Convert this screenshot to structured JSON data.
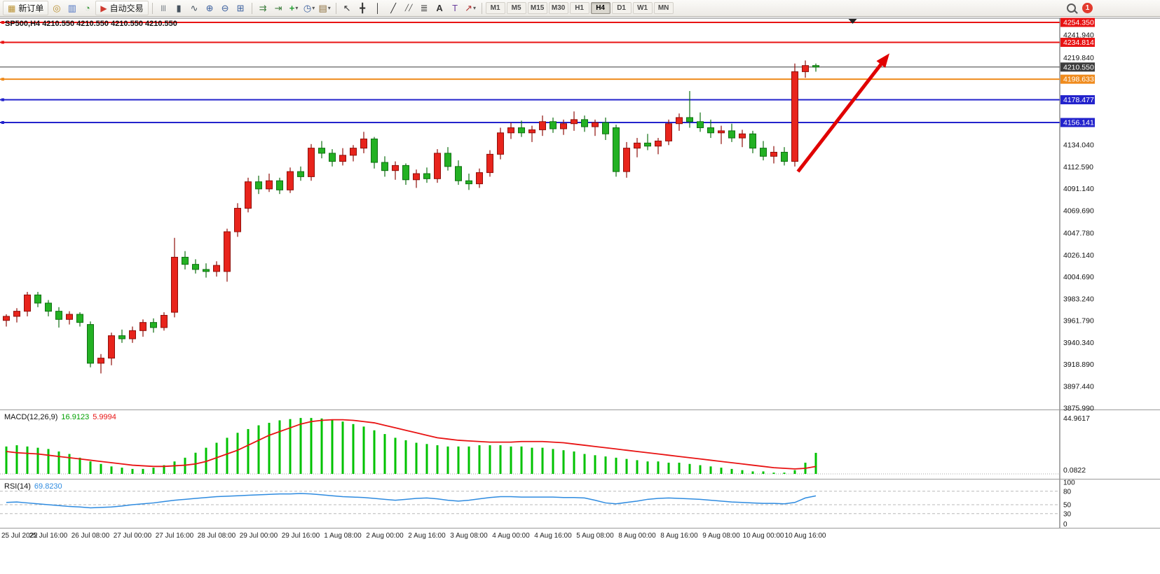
{
  "toolbar": {
    "badge_count": "1",
    "timeframes": [
      "M1",
      "M5",
      "M15",
      "M30",
      "H1",
      "H4",
      "D1",
      "W1",
      "MN"
    ],
    "active_timeframe": "H4",
    "items": [
      {
        "type": "button",
        "name": "new-order-button",
        "label": "新订单",
        "glyph": "▦",
        "glyph_color": "#b99030"
      },
      {
        "type": "icon",
        "name": "alerts-icon",
        "glyph": "◎",
        "glyph_color": "#b99030"
      },
      {
        "type": "icon",
        "name": "market-watch-icon",
        "glyph": "▥",
        "glyph_color": "#4f74c2"
      },
      {
        "type": "icon",
        "name": "strategy-tester-icon",
        "glyph": "◔",
        "glyph_color": "#3f9b41"
      },
      {
        "type": "button",
        "name": "autotrade-button",
        "label": "自动交易",
        "glyph": "▶",
        "glyph_color": "#cf3a30"
      },
      {
        "type": "sep"
      },
      {
        "type": "icon",
        "name": "bar-chart-type-icon",
        "glyph": "|||",
        "glyph_color": "#46525e",
        "glyph_size": 9
      },
      {
        "type": "icon",
        "name": "candlestick-type-icon",
        "glyph": "▮",
        "glyph_color": "#46525e"
      },
      {
        "type": "icon",
        "name": "line-chart-type-icon",
        "glyph": "∿",
        "glyph_color": "#46525e"
      },
      {
        "type": "icon",
        "name": "zoom-in-icon",
        "glyph": "⊕",
        "glyph_color": "#3a5f9e"
      },
      {
        "type": "icon",
        "name": "zoom-out-icon",
        "glyph": "⊖",
        "glyph_color": "#3a5f9e"
      },
      {
        "type": "icon",
        "name": "tile-windows-icon",
        "glyph": "⊞",
        "glyph_color": "#3a5f9e"
      },
      {
        "type": "sep"
      },
      {
        "type": "icon",
        "name": "auto-scroll-icon",
        "glyph": "⇉",
        "glyph_color": "#3f7f3f"
      },
      {
        "type": "icon",
        "name": "chart-shift-icon",
        "glyph": "⇥",
        "glyph_color": "#3f7f3f"
      },
      {
        "type": "icon",
        "name": "indicators-icon",
        "glyph": "+",
        "glyph_color": "#1f9d2f",
        "bold": true,
        "caret": true
      },
      {
        "type": "icon",
        "name": "periods-icon",
        "glyph": "◷",
        "glyph_color": "#3a5f9e",
        "caret": true
      },
      {
        "type": "icon",
        "name": "templates-icon",
        "glyph": "▤",
        "glyph_color": "#8a6d3b",
        "caret": true
      },
      {
        "type": "sep"
      },
      {
        "type": "icon",
        "name": "cursor-icon",
        "glyph": "↖",
        "glyph_color": "#333333"
      },
      {
        "type": "icon",
        "name": "crosshair-icon",
        "glyph": "╋",
        "glyph_color": "#333333"
      },
      {
        "type": "icon",
        "name": "vertical-line-icon",
        "glyph": "│",
        "glyph_color": "#333333"
      },
      {
        "type": "icon",
        "name": "trendline-icon",
        "glyph": "╱",
        "glyph_color": "#333333"
      },
      {
        "type": "icon",
        "name": "channel-icon",
        "glyph": "╱╱",
        "glyph_color": "#333333",
        "glyph_size": 9
      },
      {
        "type": "icon",
        "name": "fibonacci-icon",
        "glyph": "≣",
        "glyph_color": "#333333"
      },
      {
        "type": "icon",
        "name": "text-icon",
        "glyph": "A",
        "glyph_color": "#333333",
        "bold": true
      },
      {
        "type": "icon",
        "name": "text-label-icon",
        "glyph": "T",
        "glyph_color": "#6a3f9e"
      },
      {
        "type": "icon",
        "name": "arrows-icon",
        "glyph": "↗",
        "glyph_color": "#b03030",
        "caret": true
      },
      {
        "type": "sep"
      },
      {
        "type": "tf-group"
      },
      {
        "type": "spacer"
      },
      {
        "type": "search"
      },
      {
        "type": "badge"
      }
    ]
  },
  "chart_data": {
    "type": "candlestick",
    "symbol": "SP500",
    "timeframe": "H4",
    "ohlc_label": "SP500,H4 4210.550 4210.550 4210.550 4210.550",
    "colors": {
      "up_fill": "#e8241c",
      "up_stroke": "#8f0f0a",
      "down_fill": "#23b123",
      "down_stroke": "#0f6f12",
      "macd_hist": "#00c200",
      "macd_signal": "#e81313",
      "rsi_line": "#2e8be0"
    },
    "price_axis": {
      "max": 4254.35,
      "min": 3875.99,
      "ticks": [
        {
          "p": 4241.94,
          "label": "4241.940"
        },
        {
          "p": 4219.84,
          "label": "4219.840"
        },
        {
          "p": 4134.04,
          "label": "4134.040"
        },
        {
          "p": 4112.59,
          "label": "4112.590"
        },
        {
          "p": 4091.14,
          "label": "4091.140"
        },
        {
          "p": 4069.69,
          "label": "4069.690"
        },
        {
          "p": 4047.78,
          "label": "4047.780"
        },
        {
          "p": 4026.14,
          "label": "4026.140"
        },
        {
          "p": 4004.69,
          "label": "4004.690"
        },
        {
          "p": 3983.24,
          "label": "3983.240"
        },
        {
          "p": 3961.79,
          "label": "3961.790"
        },
        {
          "p": 3940.34,
          "label": "3940.340"
        },
        {
          "p": 3918.89,
          "label": "3918.890"
        },
        {
          "p": 3897.44,
          "label": "3897.440"
        },
        {
          "p": 3875.99,
          "label": "3875.990"
        }
      ]
    },
    "hlines": [
      {
        "price": 4254.35,
        "label": "4254.350",
        "color": "#e81313",
        "width": 2,
        "marker": true
      },
      {
        "price": 4234.814,
        "label": "4234.814",
        "color": "#e81313",
        "width": 2,
        "marker": true
      },
      {
        "price": 4210.55,
        "label": "4210.550",
        "color": "#3c3c3c",
        "width": 1,
        "marker": false,
        "name": "current-price-line"
      },
      {
        "price": 4198.633,
        "label": "4198.633",
        "color": "#ef8b1d",
        "width": 2,
        "marker": true
      },
      {
        "price": 4178.477,
        "label": "4178.477",
        "color": "#2323cc",
        "width": 2,
        "marker": true
      },
      {
        "price": 4156.141,
        "label": "4156.141",
        "color": "#2323cc",
        "width": 2,
        "marker": true
      }
    ],
    "bars_format": [
      "time",
      "open",
      "high",
      "low",
      "close"
    ],
    "bars": [
      [
        "25 Jul 00:00",
        3962,
        3968,
        3956,
        3966
      ],
      [
        "25 Jul 04:00",
        3966,
        3974,
        3960,
        3971
      ],
      [
        "25 Jul 08:00",
        3971,
        3990,
        3966,
        3987
      ],
      [
        "25 Jul 12:00",
        3987,
        3990,
        3975,
        3979
      ],
      [
        "25 Jul 16:00",
        3979,
        3982,
        3966,
        3971
      ],
      [
        "25 Jul 20:00",
        3971,
        3975,
        3955,
        3963
      ],
      [
        "26 Jul 00:00",
        3963,
        3971,
        3958,
        3968
      ],
      [
        "26 Jul 04:00",
        3968,
        3970,
        3956,
        3960
      ],
      [
        "26 Jul 08:00",
        3958,
        3961,
        3916,
        3920
      ],
      [
        "26 Jul 12:00",
        3920,
        3929,
        3910,
        3925
      ],
      [
        "26 Jul 16:00",
        3925,
        3950,
        3918,
        3947
      ],
      [
        "26 Jul 20:00",
        3947,
        3953,
        3940,
        3944
      ],
      [
        "27 Jul 00:00",
        3944,
        3956,
        3940,
        3952
      ],
      [
        "27 Jul 04:00",
        3952,
        3963,
        3946,
        3960
      ],
      [
        "27 Jul 08:00",
        3960,
        3964,
        3950,
        3955
      ],
      [
        "27 Jul 12:00",
        3955,
        3970,
        3952,
        3967
      ],
      [
        "27 Jul 16:00",
        3970,
        4043,
        3965,
        4024
      ],
      [
        "27 Jul 20:00",
        4024,
        4030,
        4012,
        4017
      ],
      [
        "28 Jul 00:00",
        4017,
        4022,
        4008,
        4012
      ],
      [
        "28 Jul 04:00",
        4012,
        4018,
        4004,
        4010
      ],
      [
        "28 Jul 08:00",
        4010,
        4020,
        4005,
        4016
      ],
      [
        "28 Jul 12:00",
        4010,
        4052,
        4000,
        4049
      ],
      [
        "28 Jul 16:00",
        4049,
        4077,
        4044,
        4072
      ],
      [
        "28 Jul 20:00",
        4072,
        4102,
        4068,
        4098
      ],
      [
        "29 Jul 00:00",
        4098,
        4104,
        4086,
        4091
      ],
      [
        "29 Jul 04:00",
        4091,
        4106,
        4088,
        4099
      ],
      [
        "29 Jul 08:00",
        4099,
        4102,
        4086,
        4090
      ],
      [
        "29 Jul 12:00",
        4090,
        4112,
        4087,
        4108
      ],
      [
        "29 Jul 16:00",
        4108,
        4113,
        4099,
        4103
      ],
      [
        "29 Jul 20:00",
        4103,
        4135,
        4099,
        4131
      ],
      [
        "1 Aug 00:00",
        4131,
        4138,
        4121,
        4126
      ],
      [
        "1 Aug 04:00",
        4126,
        4130,
        4113,
        4118
      ],
      [
        "1 Aug 08:00",
        4118,
        4131,
        4114,
        4124
      ],
      [
        "1 Aug 12:00",
        4124,
        4134,
        4118,
        4131
      ],
      [
        "1 Aug 16:00",
        4131,
        4147,
        4126,
        4140
      ],
      [
        "1 Aug 20:00",
        4140,
        4142,
        4111,
        4117
      ],
      [
        "2 Aug 00:00",
        4117,
        4123,
        4103,
        4109
      ],
      [
        "2 Aug 04:00",
        4109,
        4118,
        4100,
        4114
      ],
      [
        "2 Aug 08:00",
        4114,
        4116,
        4095,
        4100
      ],
      [
        "2 Aug 12:00",
        4100,
        4110,
        4092,
        4106
      ],
      [
        "2 Aug 16:00",
        4106,
        4112,
        4097,
        4101
      ],
      [
        "2 Aug 20:00",
        4101,
        4130,
        4097,
        4126
      ],
      [
        "3 Aug 00:00",
        4126,
        4132,
        4109,
        4113
      ],
      [
        "3 Aug 04:00",
        4113,
        4119,
        4095,
        4099
      ],
      [
        "3 Aug 08:00",
        4099,
        4106,
        4090,
        4096
      ],
      [
        "3 Aug 12:00",
        4096,
        4111,
        4092,
        4107
      ],
      [
        "3 Aug 16:00",
        4107,
        4129,
        4103,
        4125
      ],
      [
        "3 Aug 20:00",
        4125,
        4151,
        4120,
        4146
      ],
      [
        "4 Aug 00:00",
        4146,
        4156,
        4140,
        4151
      ],
      [
        "4 Aug 04:00",
        4151,
        4158,
        4142,
        4146
      ],
      [
        "4 Aug 08:00",
        4146,
        4153,
        4137,
        4149
      ],
      [
        "4 Aug 12:00",
        4149,
        4163,
        4143,
        4157
      ],
      [
        "4 Aug 16:00",
        4157,
        4161,
        4146,
        4150
      ],
      [
        "4 Aug 20:00",
        4150,
        4159,
        4144,
        4155
      ],
      [
        "5 Aug 00:00",
        4155,
        4167,
        4148,
        4159
      ],
      [
        "5 Aug 04:00",
        4159,
        4163,
        4147,
        4152
      ],
      [
        "5 Aug 08:00",
        4152,
        4159,
        4143,
        4156
      ],
      [
        "5 Aug 12:00",
        4156,
        4161,
        4139,
        4145
      ],
      [
        "5 Aug 16:00",
        4151,
        4154,
        4103,
        4108
      ],
      [
        "5 Aug 20:00",
        4108,
        4137,
        4102,
        4131
      ],
      [
        "8 Aug 00:00",
        4131,
        4141,
        4122,
        4136
      ],
      [
        "8 Aug 04:00",
        4136,
        4145,
        4129,
        4133
      ],
      [
        "8 Aug 08:00",
        4133,
        4141,
        4125,
        4138
      ],
      [
        "8 Aug 12:00",
        4138,
        4159,
        4134,
        4155
      ],
      [
        "8 Aug 16:00",
        4155,
        4165,
        4148,
        4161
      ],
      [
        "8 Aug 20:00",
        4161,
        4187,
        4151,
        4157
      ],
      [
        "9 Aug 00:00",
        4157,
        4166,
        4147,
        4151
      ],
      [
        "9 Aug 04:00",
        4151,
        4159,
        4141,
        4146
      ],
      [
        "9 Aug 08:00",
        4146,
        4153,
        4135,
        4148
      ],
      [
        "9 Aug 12:00",
        4148,
        4155,
        4137,
        4141
      ],
      [
        "9 Aug 16:00",
        4141,
        4149,
        4132,
        4145
      ],
      [
        "9 Aug 20:00",
        4145,
        4148,
        4126,
        4131
      ],
      [
        "10 Aug 00:00",
        4131,
        4138,
        4119,
        4123
      ],
      [
        "10 Aug 04:00",
        4123,
        4133,
        4116,
        4127
      ],
      [
        "10 Aug 08:00",
        4127,
        4132,
        4114,
        4118
      ],
      [
        "10 Aug 12:00",
        4118,
        4214,
        4113,
        4206
      ],
      [
        "10 Aug 16:00",
        4206,
        4217,
        4200,
        4212
      ],
      [
        "10 Aug 20:00",
        4212,
        4214,
        4206,
        4210.55
      ]
    ],
    "time_labels": [
      {
        "i": 0,
        "label": "25 Jul 2022"
      },
      {
        "i": 4,
        "label": "25 Jul 16:00"
      },
      {
        "i": 8,
        "label": "26 Jul 08:00"
      },
      {
        "i": 12,
        "label": "27 Jul 00:00"
      },
      {
        "i": 16,
        "label": "27 Jul 16:00"
      },
      {
        "i": 20,
        "label": "28 Jul 08:00"
      },
      {
        "i": 24,
        "label": "29 Jul 00:00"
      },
      {
        "i": 28,
        "label": "29 Jul 16:00"
      },
      {
        "i": 32,
        "label": "1 Aug 08:00"
      },
      {
        "i": 36,
        "label": "2 Aug 00:00"
      },
      {
        "i": 40,
        "label": "2 Aug 16:00"
      },
      {
        "i": 44,
        "label": "3 Aug 08:00"
      },
      {
        "i": 48,
        "label": "4 Aug 00:00"
      },
      {
        "i": 52,
        "label": "4 Aug 16:00"
      },
      {
        "i": 56,
        "label": "5 Aug 08:00"
      },
      {
        "i": 60,
        "label": "8 Aug 00:00"
      },
      {
        "i": 64,
        "label": "8 Aug 16:00"
      },
      {
        "i": 68,
        "label": "9 Aug 08:00"
      },
      {
        "i": 72,
        "label": "10 Aug 00:00"
      },
      {
        "i": 76,
        "label": "10 Aug 16:00"
      }
    ],
    "macd": {
      "name": "MACD(12,26,9)",
      "value": "16.9123",
      "signal_value": "5.9994",
      "scale_max": 44.9617,
      "scale_max_label": "44.9617",
      "scale_min_label": "0.0822",
      "histogram": [
        22,
        23,
        22,
        21,
        20,
        18,
        16,
        13,
        10,
        8,
        6,
        5,
        4,
        4,
        5,
        7,
        10,
        13,
        17,
        21,
        25,
        29,
        33,
        36,
        39,
        41,
        43,
        44,
        44.9,
        44.9,
        44.5,
        43.5,
        42,
        40,
        38,
        35,
        32,
        29,
        27,
        25,
        24,
        23,
        22,
        22,
        22,
        23,
        23,
        23,
        22,
        22,
        21,
        21,
        20,
        19,
        18,
        16,
        15,
        14,
        13,
        12,
        11,
        10,
        10,
        9,
        9,
        8,
        7,
        6,
        5,
        4,
        3,
        2,
        2,
        1,
        1,
        3,
        9,
        16.9
      ],
      "signal": [
        18,
        17,
        16.5,
        16,
        15,
        14,
        13,
        12,
        11,
        10,
        9,
        8,
        7,
        6.5,
        6,
        6,
        6.5,
        7,
        8,
        10,
        13,
        16,
        19,
        23,
        27,
        31,
        34,
        37,
        40,
        42,
        43,
        43.5,
        43.5,
        43,
        42,
        41,
        39,
        37,
        35,
        33,
        31,
        29,
        28,
        27,
        26.5,
        26,
        25.5,
        25.5,
        25.5,
        26,
        26,
        26,
        25.5,
        25,
        24,
        23,
        22,
        21,
        20,
        19,
        18,
        17,
        16,
        15,
        14,
        13,
        12,
        11,
        10,
        9,
        8,
        7,
        6,
        5,
        4.5,
        4,
        4.5,
        6
      ]
    },
    "rsi": {
      "name": "RSI(14)",
      "value": "69.8230",
      "levels": [
        80,
        50,
        30
      ],
      "scale_labels": [
        {
          "v": 100,
          "label": "100"
        },
        {
          "v": 80,
          "label": "80"
        },
        {
          "v": 50,
          "label": "50"
        },
        {
          "v": 30,
          "label": "30"
        },
        {
          "v": 0,
          "label": "0"
        }
      ],
      "values": [
        55,
        56,
        54,
        52,
        50,
        48,
        46,
        45,
        43,
        44,
        45,
        47,
        50,
        52,
        54,
        57,
        60,
        62,
        64,
        66,
        68,
        69,
        70,
        71,
        72,
        73,
        74,
        74,
        75,
        74,
        72,
        70,
        68,
        67,
        66,
        64,
        62,
        60,
        62,
        64,
        65,
        63,
        60,
        58,
        60,
        63,
        66,
        68,
        68,
        67,
        67,
        67,
        67,
        66,
        66,
        65,
        60,
        54,
        52,
        55,
        58,
        62,
        64,
        65,
        64,
        63,
        62,
        60,
        58,
        56,
        55,
        54,
        53,
        53,
        52,
        55,
        65,
        69.8
      ]
    },
    "annotations": {
      "arrow": {
        "from_bar": 75.3,
        "from_price": 4108,
        "to_bar": 84,
        "to_price": 4224,
        "color": "#e00000",
        "width": 5
      },
      "top_marker": {
        "bar": 80.5,
        "color": "#222222"
      }
    }
  }
}
